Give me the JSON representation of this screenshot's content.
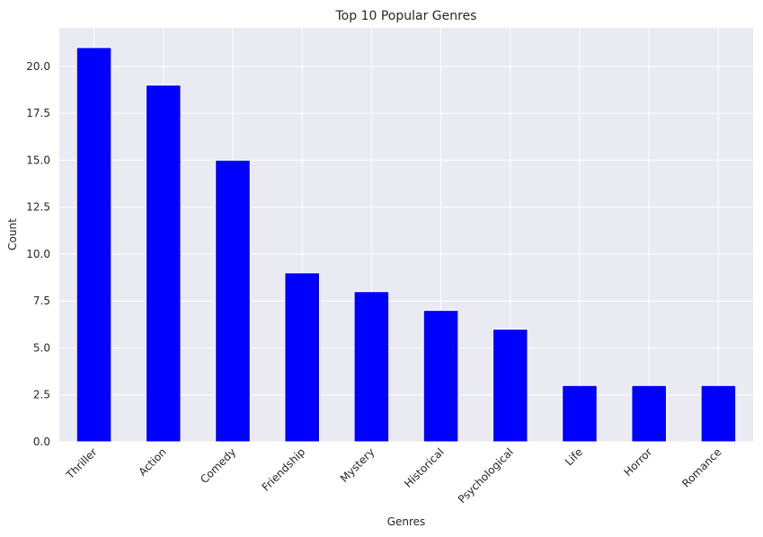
{
  "chart_data": {
    "type": "bar",
    "title": "Top 10 Popular Genres",
    "xlabel": "Genres",
    "ylabel": "Count",
    "categories": [
      "Thriller",
      "Action",
      "Comedy",
      "Friendship",
      "Mystery",
      "Historical",
      "Psychological",
      "Life",
      "Horror",
      "Romance"
    ],
    "values": [
      21,
      19,
      15,
      9,
      8,
      7,
      6,
      3,
      3,
      3
    ],
    "ylim": [
      0,
      22.05
    ],
    "yticks": [
      "0.0",
      "2.5",
      "5.0",
      "7.5",
      "10.0",
      "12.5",
      "15.0",
      "17.5",
      "20.0"
    ],
    "grid": true,
    "bar_color": "#0000ff",
    "plot_background": "#eaeaf2",
    "grid_color": "#ffffff"
  }
}
